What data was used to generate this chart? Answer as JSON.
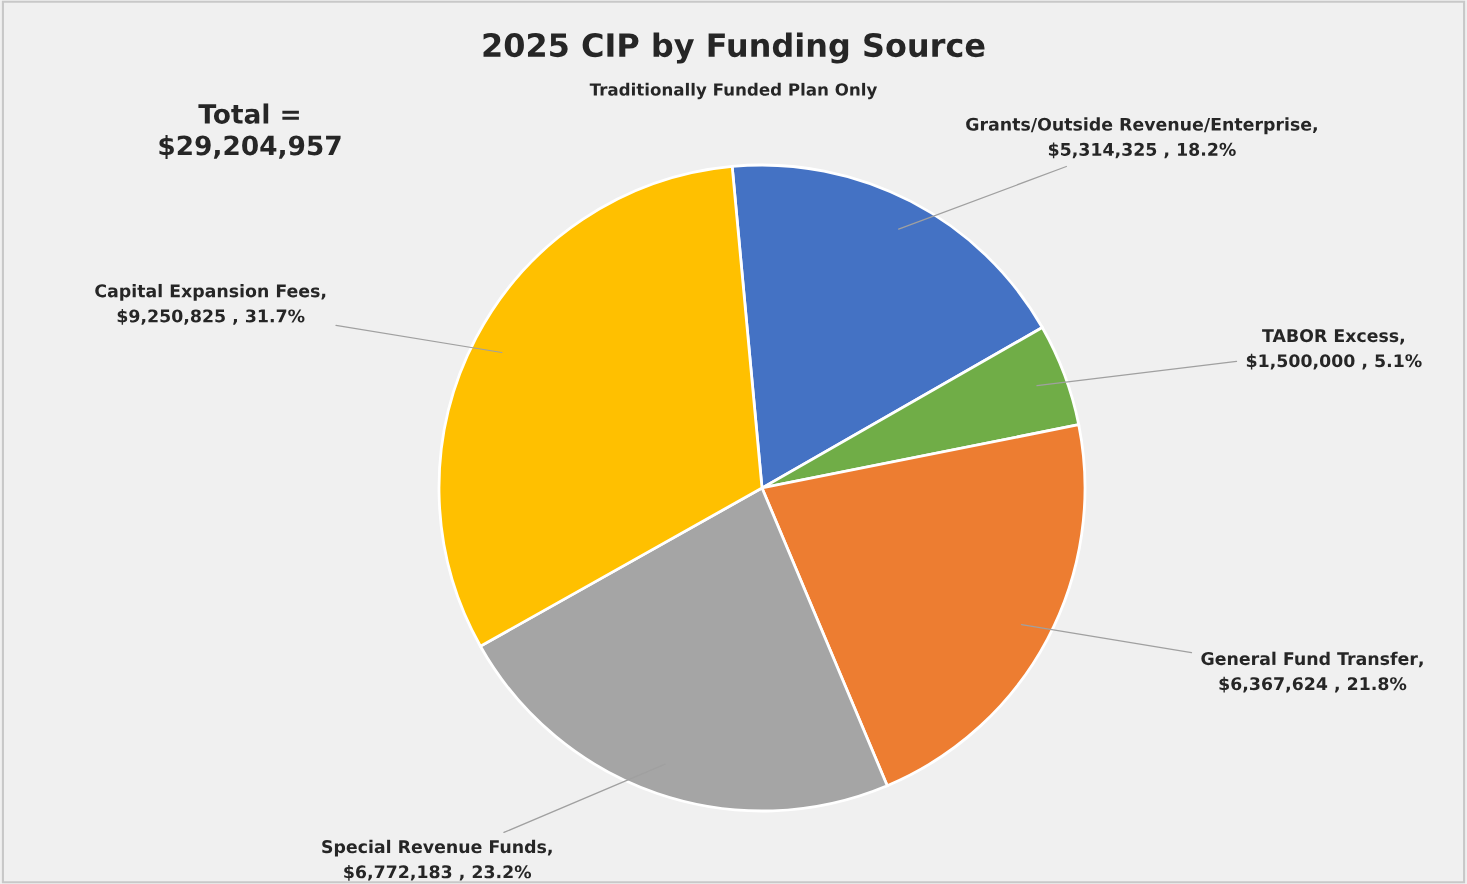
{
  "chart_data": {
    "type": "pie",
    "title": "2025 CIP by Funding Source",
    "subtitle": "Traditionally Funded Plan Only",
    "annotations": [
      "Total =\n$29,204,957"
    ],
    "categories": [
      "Grants/Outside Revenue/Enterprise",
      "TABOR Excess",
      "General Fund Transfer",
      "Special Revenue Funds",
      "Capital Expansion Fees"
    ],
    "values": [
      5314325,
      1500000,
      6367624,
      6772183,
      9250825
    ],
    "value_labels": [
      ",\n$5,314,325 , 18.2%",
      ",\n$1,500,000 , 5.1%",
      ",\n$6,367,624 , 21.8%",
      ",\n$6,772,183 , 23.2%",
      ",\n$9,250,825 , 31.7%"
    ],
    "colors": [
      "#4472c4",
      "#70ad47",
      "#ed7d31",
      "#a5a5a5",
      "#ffc000"
    ],
    "legend": false
  }
}
